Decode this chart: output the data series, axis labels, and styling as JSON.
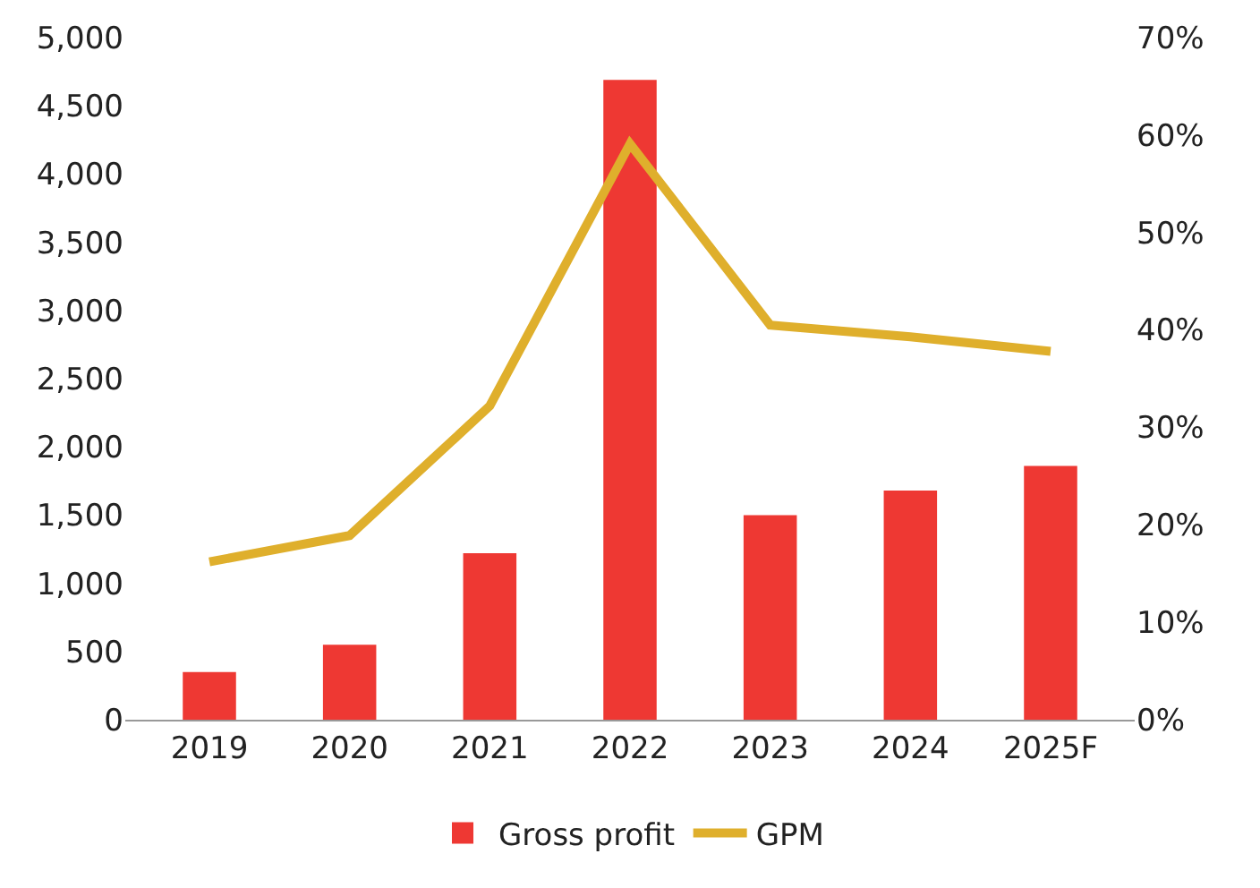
{
  "chart_data": {
    "type": "bar",
    "categories": [
      "2019",
      "2020",
      "2021",
      "2022",
      "2023",
      "2024",
      "2025F"
    ],
    "series": [
      {
        "name": "Gross profit",
        "color": "#ee3833",
        "values": [
          350,
          550,
          1220,
          4690,
          1500,
          1680,
          1860
        ]
      },
      {
        "name": "GPM",
        "type": "line",
        "axis": "y2",
        "color": "#dfaf2c",
        "values": [
          16.2,
          18.9,
          32.2,
          59.1,
          40.5,
          39.3,
          37.8
        ]
      }
    ],
    "ylim": [
      0,
      5000
    ],
    "yticks": [
      0,
      500,
      {
        "value": 1000,
        "label": "1,000"
      },
      {
        "value": 1500,
        "label": "1,500"
      },
      {
        "value": 2000,
        "label": "2,000"
      },
      {
        "value": 2500,
        "label": "2,500"
      },
      {
        "value": 3000,
        "label": "3,000"
      },
      {
        "value": 3500,
        "label": "3,500"
      },
      {
        "value": 4000,
        "label": "4,000"
      },
      {
        "value": 4500,
        "label": "4,500"
      },
      {
        "value": 5000,
        "label": "5,000"
      }
    ],
    "y2lim": [
      0,
      70
    ],
    "y2ticks": [
      {
        "value": 0,
        "label": "0%"
      },
      {
        "value": 10,
        "label": "10%"
      },
      {
        "value": 20,
        "label": "20%"
      },
      {
        "value": 30,
        "label": "30%"
      },
      {
        "value": 40,
        "label": "40%"
      },
      {
        "value": 50,
        "label": "50%"
      },
      {
        "value": 60,
        "label": "60%"
      },
      {
        "value": 70,
        "label": "70%"
      }
    ],
    "grid": false,
    "legend": "bottom",
    "marker": "none",
    "line_style": "solid"
  }
}
